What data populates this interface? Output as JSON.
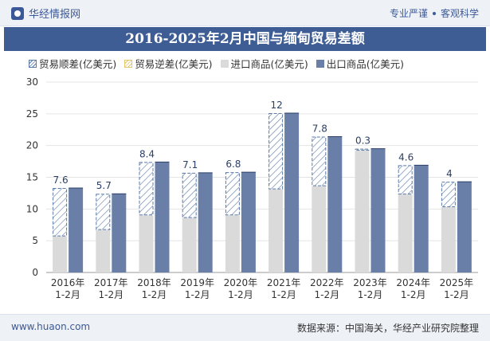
{
  "header": {
    "brand": "华经情报网",
    "tag1": "专业严谨",
    "tag2": "客观科学"
  },
  "colors": {
    "export": "#6a7fa8",
    "import": "#dadada",
    "surplus": "#5a7aa8",
    "deficit": "#e8c66a",
    "title_bg": "#3e5d94"
  },
  "chart_data": {
    "type": "bar",
    "title": "2016-2025年2月中国与缅甸贸易差额",
    "categories": [
      "2016年\n1-2月",
      "2017年\n1-2月",
      "2018年\n1-2月",
      "2019年\n1-2月",
      "2020年\n1-2月",
      "2021年\n1-2月",
      "2022年\n1-2月",
      "2023年\n1-2月",
      "2024年\n1-2月",
      "2025年\n1-2月"
    ],
    "legend": [
      "贸易顺差(亿美元)",
      "贸易逆差(亿美元)",
      "进口商品(亿美元)",
      "出口商品(亿美元)"
    ],
    "series": [
      {
        "name": "进口商品(亿美元)",
        "values": [
          5.7,
          6.7,
          9.0,
          8.6,
          9.0,
          13.1,
          13.6,
          19.2,
          12.3,
          10.3
        ]
      },
      {
        "name": "出口商品(亿美元)",
        "values": [
          13.3,
          12.4,
          17.4,
          15.7,
          15.8,
          25.1,
          21.4,
          19.5,
          16.9,
          14.3
        ]
      },
      {
        "name": "贸易顺差(亿美元)",
        "values": [
          7.6,
          5.7,
          8.4,
          7.1,
          6.8,
          12,
          7.8,
          0.3,
          4.6,
          4
        ]
      }
    ],
    "data_labels": [
      "7.6",
      "5.7",
      "8.4",
      "7.1",
      "6.8",
      "12",
      "7.8",
      "0.3",
      "4.6",
      "4"
    ],
    "ylim": [
      0,
      30
    ],
    "yticks": [
      0,
      5,
      10,
      15,
      20,
      25,
      30
    ],
    "xlabel": "",
    "ylabel": ""
  },
  "footer": {
    "site": "www.huaon.com",
    "source": "数据来源：中国海关，华经产业研究院整理"
  }
}
